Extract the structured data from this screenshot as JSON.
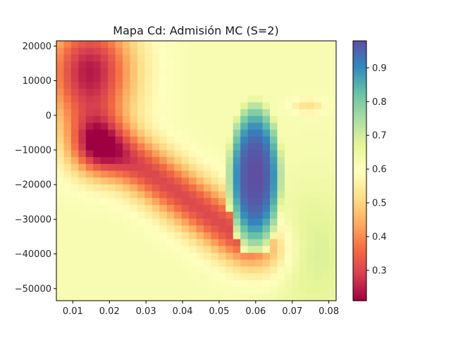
{
  "chart_data": {
    "type": "heatmap",
    "title": "Mapa Cd: Admisión MC (S=2)",
    "xlabel": "",
    "ylabel": "",
    "xlim": [
      0.0055,
      0.082
    ],
    "ylim": [
      -53500,
      21500
    ],
    "x_ticks": [
      "0.01",
      "0.02",
      "0.03",
      "0.04",
      "0.05",
      "0.06",
      "0.07",
      "0.08"
    ],
    "y_ticks": [
      "20000",
      "10000",
      "0",
      "−10000",
      "−20000",
      "−30000",
      "−40000",
      "−50000"
    ],
    "colormap": "Spectral",
    "colorbar": {
      "min": 0.21,
      "max": 0.98,
      "ticks": [
        "0.3",
        "0.4",
        "0.5",
        "0.6",
        "0.7",
        "0.8",
        "0.9"
      ]
    },
    "grid": false,
    "regions": [
      {
        "desc": "dark low band upper-left",
        "approx_value": 0.25
      },
      {
        "desc": "low red band diagonal",
        "approx_value": 0.33
      },
      {
        "desc": "high blue core near x=0.055-0.065, y=-5000 to -32000",
        "approx_value": 0.97
      },
      {
        "desc": "teal ring around core",
        "approx_value": 0.82
      },
      {
        "desc": "background light yellow",
        "approx_value": 0.62
      },
      {
        "desc": "lower right yellow-green",
        "approx_value": 0.69
      }
    ]
  }
}
